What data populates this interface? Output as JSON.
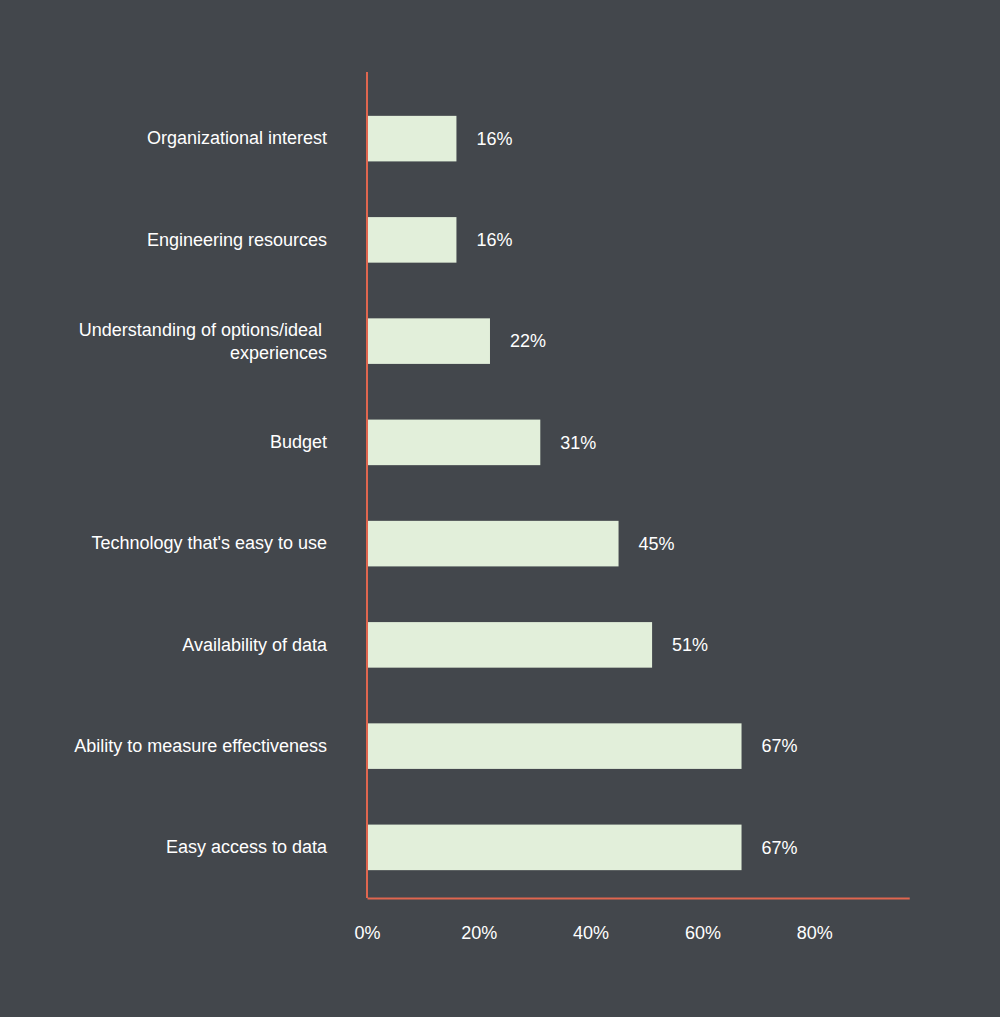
{
  "chart_data": {
    "type": "bar",
    "orientation": "horizontal",
    "categories": [
      "Organizational interest",
      "Engineering resources",
      "Understanding of options/ideal experiences",
      "Budget",
      "Technology that's easy to use",
      "Availability of data",
      "Ability to measure effectiveness",
      "Easy access to data"
    ],
    "values": [
      16,
      16,
      22,
      31,
      45,
      51,
      67,
      67
    ],
    "value_labels": [
      "16%",
      "16%",
      "22%",
      "31%",
      "45%",
      "51%",
      "67%",
      "67%"
    ],
    "data_labels": true,
    "color": "#e2efda",
    "xlim": [
      0,
      97
    ],
    "xticks": [
      {
        "value": 0,
        "label": "0%"
      },
      {
        "value": 20,
        "label": "20%"
      },
      {
        "value": 40,
        "label": "40%"
      },
      {
        "value": 60,
        "label": "60%"
      },
      {
        "value": 80,
        "label": "80%"
      }
    ],
    "grid": false
  }
}
